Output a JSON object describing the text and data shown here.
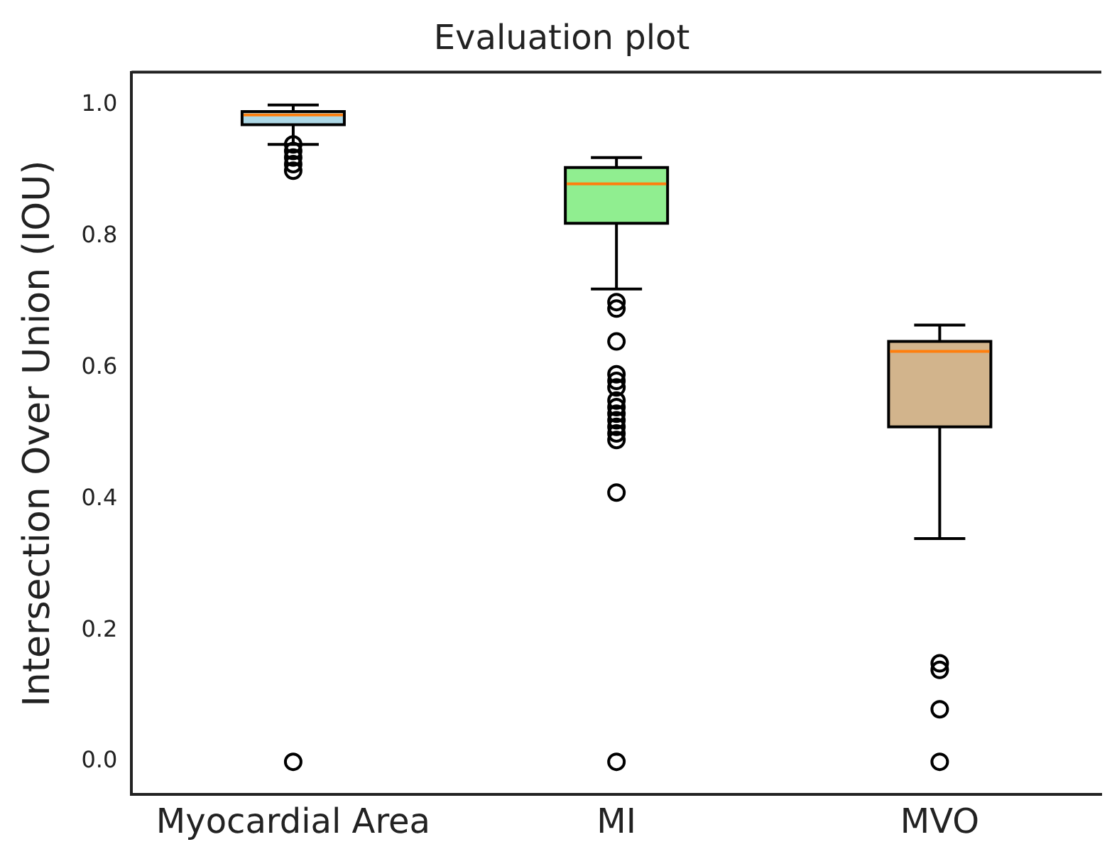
{
  "chart_data": {
    "type": "box",
    "title": "Evaluation plot",
    "ylabel": "Intersection Over Union (IOU)",
    "categories": [
      "Myocardial Area",
      "MI",
      "MVO"
    ],
    "colors": [
      "#add8e6",
      "#90ee90",
      "#d2b48c"
    ],
    "boxes": [
      {
        "low": 0.94,
        "q1": 0.97,
        "median": 0.985,
        "q3": 0.99,
        "high": 1.0,
        "outliers": [
          0.94,
          0.93,
          0.92,
          0.91,
          0.9,
          0.0
        ]
      },
      {
        "low": 0.72,
        "q1": 0.82,
        "median": 0.88,
        "q3": 0.905,
        "high": 0.92,
        "outliers": [
          0.7,
          0.69,
          0.64,
          0.59,
          0.58,
          0.57,
          0.55,
          0.54,
          0.53,
          0.52,
          0.51,
          0.5,
          0.49,
          0.41,
          0.0
        ]
      },
      {
        "low": 0.34,
        "q1": 0.51,
        "median": 0.625,
        "q3": 0.64,
        "high": 0.665,
        "outliers": [
          0.15,
          0.14,
          0.08,
          0.0
        ]
      }
    ],
    "ylim": [
      -0.05,
      1.05
    ],
    "yticks": [
      {
        "value": 0,
        "label": "0.0"
      },
      0.2,
      0.4,
      0.6,
      0.8,
      {
        "value": 1,
        "label": "1.0"
      }
    ],
    "grid": false,
    "legend": false
  }
}
